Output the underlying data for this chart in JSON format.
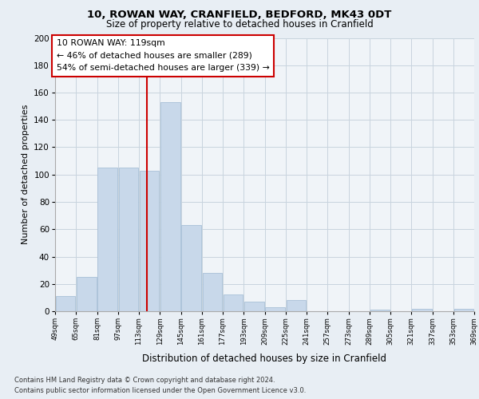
{
  "title1": "10, ROWAN WAY, CRANFIELD, BEDFORD, MK43 0DT",
  "title2": "Size of property relative to detached houses in Cranfield",
  "xlabel": "Distribution of detached houses by size in Cranfield",
  "ylabel": "Number of detached properties",
  "bar_color": "#c8d8ea",
  "bar_edgecolor": "#a8c0d8",
  "bins": [
    49,
    65,
    81,
    97,
    113,
    129,
    145,
    161,
    177,
    193,
    209,
    225,
    241,
    257,
    273,
    289,
    305,
    321,
    337,
    353,
    369
  ],
  "values": [
    11,
    25,
    105,
    105,
    103,
    153,
    63,
    28,
    12,
    7,
    3,
    8,
    0,
    0,
    0,
    1,
    0,
    2,
    0,
    2
  ],
  "tick_labels": [
    "49sqm",
    "65sqm",
    "81sqm",
    "97sqm",
    "113sqm",
    "129sqm",
    "145sqm",
    "161sqm",
    "177sqm",
    "193sqm",
    "209sqm",
    "225sqm",
    "241sqm",
    "257sqm",
    "273sqm",
    "289sqm",
    "305sqm",
    "321sqm",
    "337sqm",
    "353sqm",
    "369sqm"
  ],
  "property_size": 119,
  "annotation_title": "10 ROWAN WAY: 119sqm",
  "annotation_line1": "← 46% of detached houses are smaller (289)",
  "annotation_line2": "54% of semi-detached houses are larger (339) →",
  "vline_color": "#cc0000",
  "annotation_box_edgecolor": "#cc0000",
  "ylim": [
    0,
    200
  ],
  "yticks": [
    0,
    20,
    40,
    60,
    80,
    100,
    120,
    140,
    160,
    180,
    200
  ],
  "footnote1": "Contains HM Land Registry data © Crown copyright and database right 2024.",
  "footnote2": "Contains public sector information licensed under the Open Government Licence v3.0.",
  "bg_color": "#e8eef4",
  "plot_bg_color": "#f0f4f8"
}
